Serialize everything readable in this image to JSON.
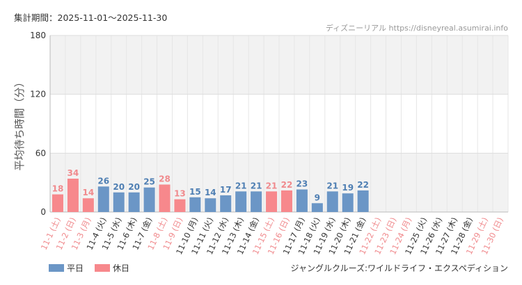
{
  "header": {
    "period": "集計期間：2025-11-01〜2025-11-30",
    "source": "ディズニーリアル https://disneyreal.asumirai.info",
    "attraction": "ジャングルクルーズ:ワイルドライフ・エクスペディション"
  },
  "legend": [
    {
      "label": "平日",
      "color": "#6b96c6"
    },
    {
      "label": "休日",
      "color": "#f7888c"
    }
  ],
  "colors": {
    "weekday": "#6b96c6",
    "holiday": "#f7888c",
    "weekday_text": "#4f7fb3",
    "holiday_text": "#f08a8d",
    "label_dark": "#333333",
    "band": "#f2f2f2"
  },
  "chart_data": {
    "type": "bar",
    "ylabel": "平均待ち時間（分）",
    "ylim": [
      0,
      180
    ],
    "yticks": [
      0,
      60,
      120,
      180
    ],
    "shaded_bands": [
      [
        120,
        180
      ],
      [
        0,
        60
      ]
    ],
    "grid": true,
    "categories": [
      "11-1 (土)",
      "11-2 (日)",
      "11-3 (月)",
      "11-4 (火)",
      "11-5 (水)",
      "11-6 (木)",
      "11-7 (金)",
      "11-8 (土)",
      "11-9 (日)",
      "11-10 (月)",
      "11-11 (火)",
      "11-12 (水)",
      "11-13 (木)",
      "11-14 (金)",
      "11-15 (土)",
      "11-16 (日)",
      "11-17 (月)",
      "11-18 (火)",
      "11-19 (水)",
      "11-20 (木)",
      "11-21 (金)",
      "11-22 (土)",
      "11-23 (日)",
      "11-24 (月)",
      "11-25 (火)",
      "11-26 (水)",
      "11-27 (木)",
      "11-28 (金)",
      "11-29 (土)",
      "11-30 (日)"
    ],
    "values": [
      18,
      34,
      14,
      26,
      20,
      20,
      25,
      28,
      13,
      15,
      14,
      17,
      21,
      21,
      21,
      22,
      23,
      9,
      21,
      19,
      22,
      null,
      null,
      null,
      null,
      null,
      null,
      null,
      null,
      null
    ],
    "day_type": [
      "holiday",
      "holiday",
      "holiday",
      "weekday",
      "weekday",
      "weekday",
      "weekday",
      "holiday",
      "holiday",
      "weekday",
      "weekday",
      "weekday",
      "weekday",
      "weekday",
      "holiday",
      "holiday",
      "weekday",
      "weekday",
      "weekday",
      "weekday",
      "weekday",
      "holiday",
      "holiday",
      "holiday",
      "weekday",
      "weekday",
      "weekday",
      "weekday",
      "holiday",
      "holiday"
    ],
    "legend_position": "bottom-left"
  }
}
